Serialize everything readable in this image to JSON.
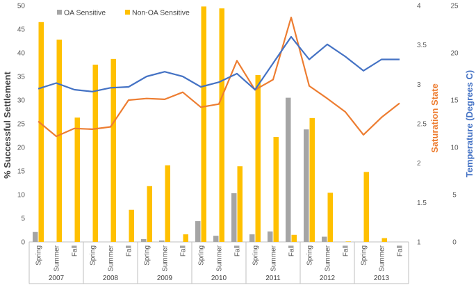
{
  "chart_data": {
    "type": "bar",
    "categories": [
      "Spring",
      "Summer",
      "Fall",
      "Spring",
      "Summer",
      "Fall",
      "Spring",
      "Summer",
      "Fall",
      "Spring",
      "Summer",
      "Fall",
      "Spring",
      "Summer",
      "Fall",
      "Spring",
      "Summer",
      "Fall",
      "Spring",
      "Summer",
      "Fall"
    ],
    "groups": [
      {
        "label": "2007",
        "size": 3
      },
      {
        "label": "2008",
        "size": 3
      },
      {
        "label": "2009",
        "size": 3
      },
      {
        "label": "2010",
        "size": 3
      },
      {
        "label": "2011",
        "size": 3
      },
      {
        "label": "2012",
        "size": 3
      },
      {
        "label": "2013",
        "size": 3
      }
    ],
    "series": [
      {
        "name": "OA Sensitive",
        "type": "bar",
        "axis": "left",
        "color": "#a5a5a5",
        "values": [
          2.1,
          0,
          0,
          0,
          0,
          0,
          0.6,
          0.3,
          0,
          4.4,
          1.3,
          10.3,
          1.6,
          2.2,
          30.5,
          23.8,
          1.1,
          0,
          0,
          0,
          0
        ]
      },
      {
        "name": "Non-OA Sensitive",
        "type": "bar",
        "axis": "left",
        "color": "#ffc000",
        "values": [
          46.5,
          42.8,
          26.3,
          37.5,
          38.7,
          6.8,
          11.8,
          16.2,
          1.6,
          49.8,
          49.4,
          16.0,
          35.3,
          22.2,
          1.5,
          26.2,
          10.4,
          0.1,
          14.8,
          0.8,
          0
        ]
      },
      {
        "name": "Saturation State",
        "type": "line",
        "axis": "right1",
        "color": "#ed7d31",
        "values": [
          2.53,
          2.34,
          2.44,
          2.43,
          2.46,
          2.8,
          2.82,
          2.81,
          2.9,
          2.71,
          2.75,
          3.3,
          2.93,
          3.06,
          3.85,
          2.98,
          2.82,
          2.65,
          2.36,
          2.58,
          2.76
        ]
      },
      {
        "name": "Temperature",
        "type": "line",
        "axis": "right2",
        "color": "#4472c4",
        "values": [
          16.2,
          16.8,
          16.1,
          15.9,
          16.3,
          16.4,
          17.5,
          18.0,
          17.5,
          16.4,
          16.9,
          17.8,
          16.1,
          18.9,
          21.7,
          19.3,
          20.9,
          19.6,
          18.1,
          19.3,
          19.3
        ]
      }
    ],
    "legend": [
      "OA Sensitive",
      "Non-OA Sensitive"
    ],
    "legend_position": "top-left",
    "ylabel": "% Successful Settlement",
    "ylim": [
      0,
      50
    ],
    "yticks": [
      0,
      5,
      10,
      15,
      20,
      25,
      30,
      35,
      40,
      45,
      50
    ],
    "y2label": "Saturation State",
    "y2lim": [
      1,
      4
    ],
    "y2ticks": [
      1,
      1.5,
      2,
      2.5,
      3,
      3.5,
      4
    ],
    "y3label": "Temperature (Degrees C)",
    "y3lim": [
      0,
      25
    ],
    "y3ticks": [
      0,
      5,
      10,
      15,
      20,
      25
    ],
    "colors": {
      "left_axis": "#404040",
      "right1_axis": "#ed7d31",
      "right2_axis": "#4472c4",
      "tick_text": "#595959"
    }
  }
}
